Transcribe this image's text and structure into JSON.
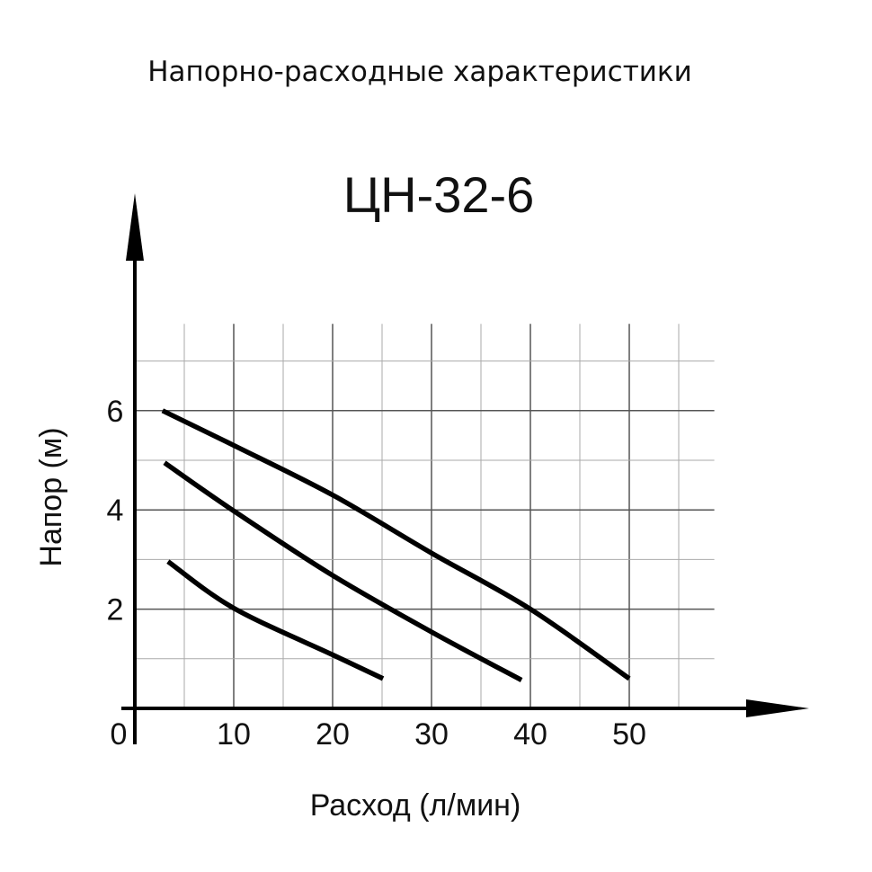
{
  "chart_data": {
    "type": "line",
    "title": "Напорно-расходные характеристики",
    "subtitle": "ЦН-32-6",
    "xlabel": "Расход (л/мин)",
    "ylabel": "Напор (м)",
    "xlim": [
      0,
      58.6
    ],
    "ylim": [
      0,
      7.75
    ],
    "x_ticks": [
      "0",
      "10",
      "20",
      "30",
      "40",
      "50"
    ],
    "x_tick_values": [
      0,
      10,
      20,
      30,
      40,
      50
    ],
    "y_ticks": [
      "2",
      "4",
      "6"
    ],
    "y_tick_values": [
      2,
      4,
      6
    ],
    "grid": true,
    "grid_x_step": 5,
    "grid_y_step": 1,
    "line_color": "#000000",
    "series": [
      {
        "points": [
          [
            2.8,
            6.0
          ],
          [
            10,
            5.3
          ],
          [
            20,
            4.3
          ],
          [
            30,
            3.13
          ],
          [
            40,
            2.0
          ],
          [
            50,
            0.6
          ]
        ]
      },
      {
        "points": [
          [
            3.0,
            4.95
          ],
          [
            10,
            3.98
          ],
          [
            20,
            2.68
          ],
          [
            30,
            1.54
          ],
          [
            39.1,
            0.57
          ]
        ]
      },
      {
        "points": [
          [
            3.35,
            2.96
          ],
          [
            10,
            2.02
          ],
          [
            20,
            1.08
          ],
          [
            25.1,
            0.6
          ]
        ]
      }
    ]
  }
}
